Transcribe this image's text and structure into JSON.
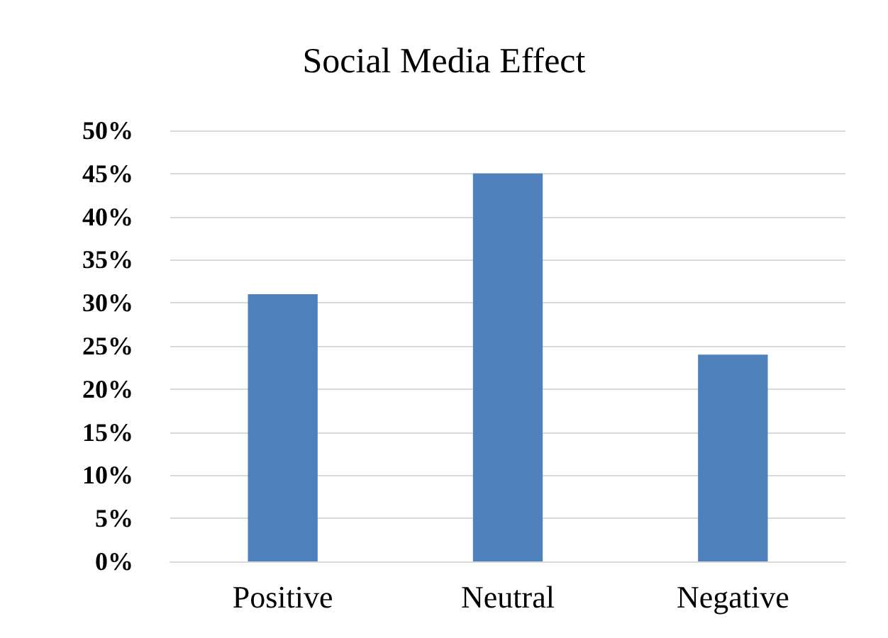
{
  "chart_data": {
    "type": "bar",
    "title": "Social Media Effect",
    "categories": [
      "Positive",
      "Neutral",
      "Negative"
    ],
    "values": [
      31,
      45,
      24
    ],
    "color": "#4f81bd",
    "ylim": [
      0,
      50
    ],
    "yticks": [
      {
        "value": 0,
        "label": "0%"
      },
      {
        "value": 5,
        "label": "5%"
      },
      {
        "value": 10,
        "label": "10%"
      },
      {
        "value": 15,
        "label": "15%"
      },
      {
        "value": 20,
        "label": "20%"
      },
      {
        "value": 25,
        "label": "25%"
      },
      {
        "value": 30,
        "label": "30%"
      },
      {
        "value": 35,
        "label": "35%"
      },
      {
        "value": 40,
        "label": "40%"
      },
      {
        "value": 45,
        "label": "45%"
      },
      {
        "value": 50,
        "label": "50%"
      }
    ],
    "grid": true
  }
}
